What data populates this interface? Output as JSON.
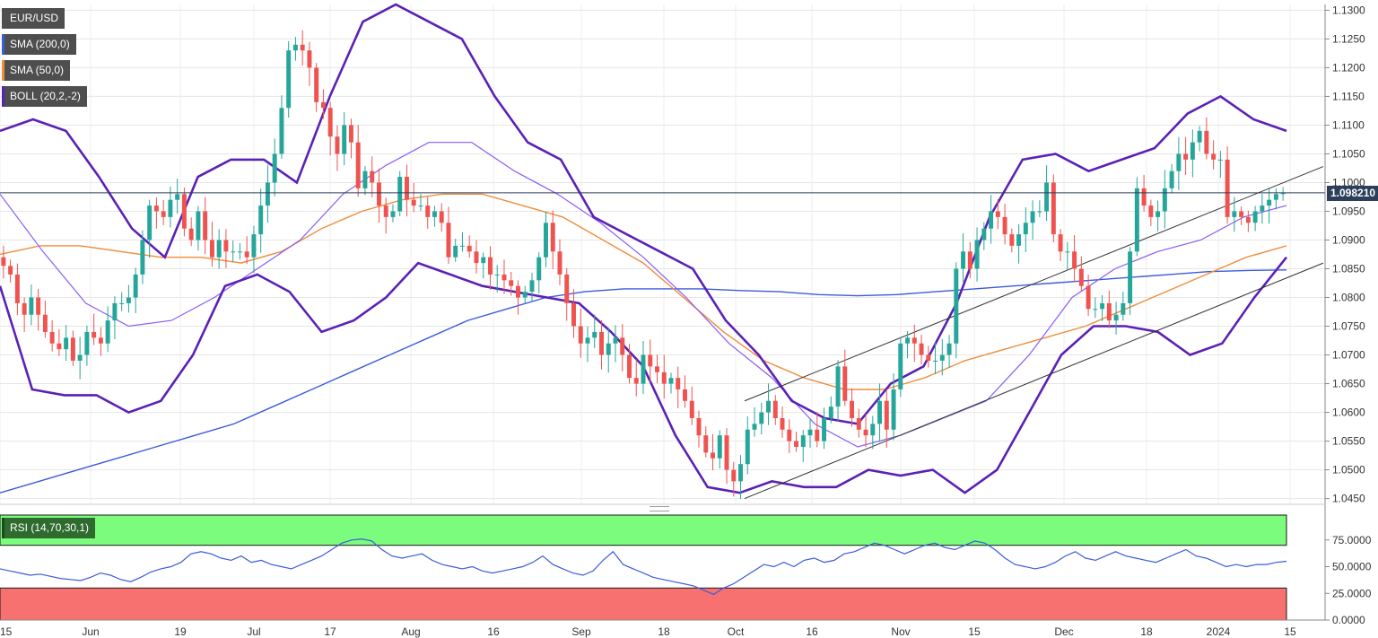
{
  "symbol": "EUR/USD",
  "indicators": {
    "sma200": "SMA (200,0)",
    "sma50": "SMA (50,0)",
    "boll": "BOLL (20,2,-2)",
    "rsi": "RSI (14,70,30,1)"
  },
  "last_price": "1.098210",
  "colors": {
    "up": "#26a69a",
    "down": "#ef5350",
    "sma200": "#3b5bdb",
    "sma50": "#f08c3a",
    "boll_band": "#5b21b6",
    "boll_mid": "#8b5cf6",
    "rsi_line": "#3b5bdb",
    "overbought_zone": "#7cfc7c",
    "oversold_zone": "#f87171"
  },
  "chart_data": [
    {
      "type": "candlestick",
      "title": "EUR/USD",
      "x_tick_labels": [
        "15",
        "Jun",
        "19",
        "Jul",
        "17",
        "Aug",
        "16",
        "Sep",
        "18",
        "Oct",
        "16",
        "Nov",
        "15",
        "Dec",
        "18",
        "2024",
        "15"
      ],
      "y_tick_labels": [
        "1.1300",
        "1.1250",
        "1.1200",
        "1.1150",
        "1.1100",
        "1.1050",
        "1.1000",
        "1.0950",
        "1.0900",
        "1.0850",
        "1.0800",
        "1.0750",
        "1.0700",
        "1.0650",
        "1.0600",
        "1.0550",
        "1.0500",
        "1.0450"
      ],
      "ylim": [
        1.044,
        1.131
      ],
      "grid": true,
      "last_price": 1.09821,
      "close_series": [
        1.0855,
        1.084,
        1.079,
        1.077,
        1.08,
        1.077,
        1.074,
        1.072,
        1.071,
        1.073,
        1.069,
        1.07,
        1.074,
        1.073,
        1.072,
        1.076,
        1.079,
        1.079,
        1.08,
        1.084,
        1.09,
        1.096,
        1.095,
        1.094,
        1.097,
        1.098,
        1.092,
        1.09,
        1.095,
        1.09,
        1.087,
        1.09,
        1.088,
        1.088,
        1.088,
        1.087,
        1.091,
        1.096,
        1.1,
        1.105,
        1.113,
        1.123,
        1.124,
        1.123,
        1.12,
        1.114,
        1.113,
        1.108,
        1.105,
        1.11,
        1.107,
        1.099,
        1.102,
        1.1,
        1.096,
        1.094,
        1.095,
        1.101,
        1.097,
        1.096,
        1.096,
        1.094,
        1.095,
        1.093,
        1.087,
        1.089,
        1.089,
        1.088,
        1.086,
        1.087,
        1.084,
        1.084,
        1.083,
        1.082,
        1.08,
        1.081,
        1.083,
        1.087,
        1.093,
        1.088,
        1.084,
        1.079,
        1.075,
        1.072,
        1.073,
        1.074,
        1.07,
        1.072,
        1.073,
        1.07,
        1.066,
        1.065,
        1.07,
        1.068,
        1.067,
        1.065,
        1.066,
        1.064,
        1.062,
        1.059,
        1.056,
        1.053,
        1.052,
        1.056,
        1.05,
        1.048,
        1.051,
        1.057,
        1.058,
        1.06,
        1.062,
        1.059,
        1.057,
        1.055,
        1.054,
        1.056,
        1.057,
        1.055,
        1.059,
        1.061,
        1.068,
        1.062,
        1.059,
        1.057,
        1.056,
        1.058,
        1.062,
        1.057,
        1.064,
        1.072,
        1.073,
        1.072,
        1.07,
        1.069,
        1.069,
        1.07,
        1.072,
        1.085,
        1.088,
        1.085,
        1.09,
        1.092,
        1.095,
        1.094,
        1.091,
        1.089,
        1.091,
        1.093,
        1.095,
        1.095,
        1.1,
        1.091,
        1.088,
        1.088,
        1.085,
        1.082,
        1.078,
        1.078,
        1.079,
        1.076,
        1.077,
        1.079,
        1.088,
        1.099,
        1.096,
        1.094,
        1.095,
        1.099,
        1.102,
        1.105,
        1.104,
        1.107,
        1.109,
        1.105,
        1.104,
        1.104,
        1.094,
        1.095,
        1.094,
        1.093,
        1.095,
        1.096,
        1.097,
        1.098,
        1.0982
      ],
      "sma200": [
        1.046,
        1.048,
        1.05,
        1.052,
        1.054,
        1.056,
        1.058,
        1.061,
        1.064,
        1.067,
        1.07,
        1.073,
        1.076,
        1.078,
        1.08,
        1.081,
        1.0815,
        1.0815,
        1.0815,
        1.0812,
        1.081,
        1.0805,
        1.0803,
        1.0805,
        1.081,
        1.0815,
        1.082,
        1.0825,
        1.083,
        1.0835,
        1.084,
        1.0845,
        1.0847,
        1.0848
      ],
      "sma50": [
        1.0875,
        1.089,
        1.089,
        1.088,
        1.087,
        1.087,
        1.086,
        1.088,
        1.092,
        1.095,
        1.097,
        1.098,
        1.098,
        1.096,
        1.094,
        1.09,
        1.086,
        1.08,
        1.074,
        1.069,
        1.066,
        1.064,
        1.064,
        1.066,
        1.069,
        1.071,
        1.073,
        1.075,
        1.078,
        1.081,
        1.084,
        1.087,
        1.089
      ],
      "boll_upper": [
        1.109,
        1.111,
        1.109,
        1.101,
        1.092,
        1.087,
        1.101,
        1.104,
        1.104,
        1.1,
        1.115,
        1.128,
        1.131,
        1.128,
        1.125,
        1.115,
        1.107,
        1.104,
        1.094,
        1.091,
        1.088,
        1.085,
        1.076,
        1.07,
        1.062,
        1.059,
        1.058,
        1.065,
        1.068,
        1.079,
        1.094,
        1.104,
        1.105,
        1.102,
        1.104,
        1.106,
        1.112,
        1.115,
        1.111,
        1.109
      ],
      "boll_lower": [
        1.082,
        1.064,
        1.063,
        1.063,
        1.06,
        1.062,
        1.07,
        1.082,
        1.084,
        1.081,
        1.074,
        1.076,
        1.08,
        1.086,
        1.084,
        1.082,
        1.081,
        1.08,
        1.079,
        1.074,
        1.068,
        1.056,
        1.047,
        1.046,
        1.048,
        1.047,
        1.047,
        1.05,
        1.049,
        1.05,
        1.046,
        1.05,
        1.06,
        1.07,
        1.075,
        1.075,
        1.074,
        1.07,
        1.072,
        1.08,
        1.087
      ],
      "boll_mid": [
        1.098,
        1.088,
        1.079,
        1.075,
        1.076,
        1.08,
        1.085,
        1.09,
        1.098,
        1.103,
        1.107,
        1.107,
        1.102,
        1.098,
        1.093,
        1.087,
        1.08,
        1.072,
        1.066,
        1.058,
        1.054,
        1.056,
        1.059,
        1.062,
        1.07,
        1.08,
        1.085,
        1.088,
        1.09,
        1.094,
        1.096
      ]
    },
    {
      "type": "line",
      "title": "RSI (14,70,30,1)",
      "y_tick_labels": [
        "75.0000",
        "50.0000",
        "25.0000",
        "0.0000"
      ],
      "ylim": [
        0,
        100
      ],
      "overbought": 70,
      "oversold": 30,
      "values": [
        48,
        46,
        44,
        42,
        43,
        41,
        39,
        38,
        37,
        40,
        44,
        42,
        38,
        36,
        40,
        45,
        48,
        50,
        54,
        62,
        64,
        62,
        58,
        56,
        60,
        54,
        56,
        52,
        50,
        48,
        52,
        56,
        60,
        66,
        72,
        75,
        76,
        74,
        66,
        60,
        58,
        60,
        62,
        56,
        52,
        50,
        48,
        50,
        46,
        44,
        46,
        48,
        50,
        54,
        60,
        52,
        48,
        44,
        42,
        46,
        56,
        64,
        52,
        48,
        44,
        40,
        38,
        36,
        34,
        32,
        28,
        24,
        30,
        34,
        40,
        46,
        52,
        50,
        54,
        50,
        56,
        58,
        54,
        56,
        62,
        64,
        68,
        72,
        70,
        66,
        62,
        66,
        70,
        72,
        68,
        66,
        70,
        74,
        72,
        66,
        58,
        52,
        50,
        48,
        50,
        54,
        60,
        64,
        58,
        56,
        60,
        64,
        60,
        58,
        56,
        54,
        58,
        62,
        66,
        60,
        58,
        54,
        50,
        52,
        50,
        52,
        52,
        54,
        55
      ]
    }
  ]
}
